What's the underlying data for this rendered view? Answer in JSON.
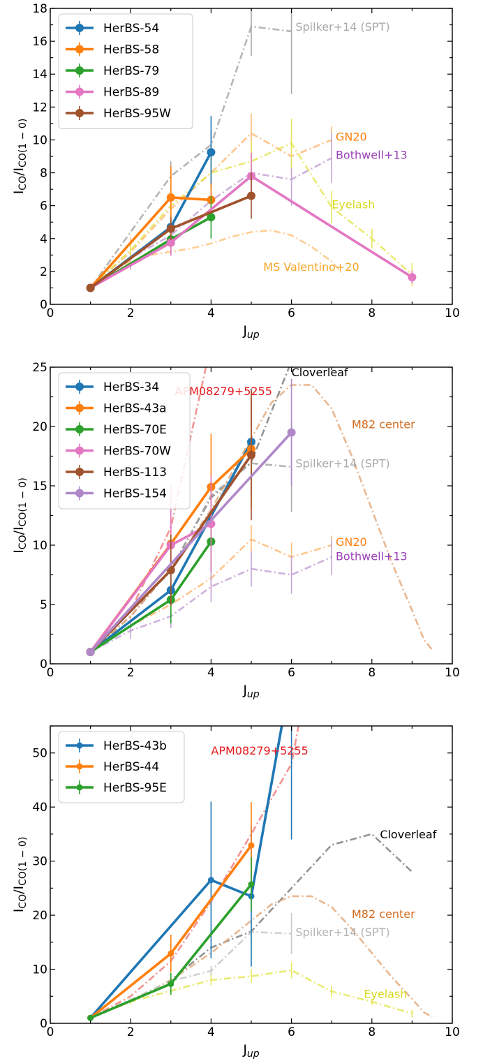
{
  "chart_data": [
    {
      "type": "line",
      "xlabel_main": "J",
      "xlabel_sub": "up",
      "ylabel_main": "I",
      "ylabel_sub": "CO",
      "ylabel_mid": "/I",
      "ylabel_sub2": "CO(1 − 0)",
      "xlim": [
        0,
        10
      ],
      "ylim": [
        0,
        18
      ],
      "xticks": [
        0,
        2,
        4,
        6,
        8,
        10
      ],
      "yticks": [
        0,
        2,
        4,
        6,
        8,
        10,
        12,
        14,
        16,
        18
      ],
      "legend_position": "top-left",
      "series": [
        {
          "name": "HerBS-54",
          "color": "#1f77b4",
          "x": [
            1,
            3,
            4
          ],
          "y": [
            1.0,
            4.7,
            9.25
          ],
          "err": [
            0,
            0.8,
            2.2
          ]
        },
        {
          "name": "HerBS-58",
          "color": "#ff7f0e",
          "x": [
            1,
            3,
            4
          ],
          "y": [
            1.0,
            6.5,
            6.35
          ],
          "err": [
            0,
            1.9,
            1.0
          ]
        },
        {
          "name": "HerBS-79",
          "color": "#2ca02c",
          "x": [
            1,
            3,
            4
          ],
          "y": [
            1.0,
            3.95,
            5.3
          ],
          "err": [
            0,
            0.8,
            1.3
          ]
        },
        {
          "name": "HerBS-89",
          "color": "#e377c2",
          "x": [
            1,
            3,
            5,
            9
          ],
          "y": [
            1.0,
            3.75,
            7.8,
            1.65
          ],
          "err": [
            0,
            0.8,
            1.4,
            0.4
          ]
        },
        {
          "name": "HerBS-95W",
          "color": "#a0522d",
          "x": [
            1,
            3,
            5
          ],
          "y": [
            1.0,
            4.6,
            6.6
          ],
          "err": [
            0,
            0.7,
            1.4
          ]
        }
      ],
      "references": [
        {
          "label": "Spilker+14 (SPT)",
          "color": "#a9a9a9",
          "x": [
            1,
            3,
            4,
            5,
            6
          ],
          "y": [
            1,
            7.8,
            9.7,
            16.9,
            16.6
          ],
          "err": [
            0,
            0.9,
            0.9,
            1.8,
            3.8
          ],
          "label_x": 6.1,
          "label_y": 16.9,
          "label_color": "#a9a9a9"
        },
        {
          "label": "GN20",
          "color": "#ffbb78",
          "x": [
            1,
            2,
            3,
            4,
            5,
            6,
            7
          ],
          "y": [
            1,
            3.2,
            5.8,
            8.0,
            10.4,
            9.0,
            10.0
          ],
          "err": [
            0,
            0.9,
            1.0,
            1.1,
            1.2,
            1.2,
            0.8
          ],
          "label_x": 7.1,
          "label_y": 10.2,
          "label_color": "#ff7f0e"
        },
        {
          "label": "Bothwell+13",
          "color": "#c5a3d6",
          "x": [
            1,
            2,
            3,
            4,
            5,
            6,
            7
          ],
          "y": [
            1,
            2.8,
            4.2,
            6.3,
            8.0,
            7.6,
            8.9
          ],
          "err": [
            0,
            0.7,
            1.0,
            1.3,
            1.5,
            1.6,
            1.5
          ],
          "label_x": 7.1,
          "label_y": 9.1,
          "label_color": "#9b3fb5"
        },
        {
          "label": "Eyelash",
          "color": "#e6e65a",
          "x": [
            1,
            2,
            3,
            4,
            5,
            6,
            7,
            8,
            9
          ],
          "y": [
            1,
            3.3,
            6.0,
            8.0,
            8.7,
            9.8,
            5.9,
            4.0,
            1.8
          ],
          "err": [
            0,
            0.5,
            0.8,
            1.0,
            1.2,
            1.5,
            1.0,
            0.6,
            0.7
          ],
          "label_x": 7.0,
          "label_y": 6.1,
          "label_color": "#d8d81e"
        },
        {
          "label": "MS Valentino+20",
          "color": "#ffc680",
          "x": [
            1,
            1.5,
            2,
            2.5,
            3,
            3.5,
            4,
            4.5,
            5,
            5.5,
            6,
            6.5,
            7,
            7.3
          ],
          "y": [
            1,
            2.0,
            2.6,
            3.0,
            3.2,
            3.4,
            3.7,
            4.1,
            4.4,
            4.5,
            4.2,
            3.5,
            2.6,
            1.8
          ],
          "err": [],
          "label_x": 5.3,
          "label_y": 2.3,
          "label_color": "#f5a623"
        }
      ]
    },
    {
      "type": "line",
      "xlabel_main": "J",
      "xlabel_sub": "up",
      "ylabel_main": "I",
      "ylabel_sub": "CO",
      "ylabel_mid": "/I",
      "ylabel_sub2": "CO(1 − 0)",
      "xlim": [
        0,
        10
      ],
      "ylim": [
        0,
        25
      ],
      "xticks": [
        0,
        2,
        4,
        6,
        8,
        10
      ],
      "yticks": [
        0,
        5,
        10,
        15,
        20,
        25
      ],
      "legend_position": "top-left",
      "series": [
        {
          "name": "HerBS-34",
          "color": "#1f77b4",
          "x": [
            1,
            3,
            5
          ],
          "y": [
            1.0,
            6.2,
            18.7
          ],
          "err": [
            0,
            1.0,
            4.5
          ]
        },
        {
          "name": "HerBS-43a",
          "color": "#ff7f0e",
          "x": [
            1,
            3,
            4,
            5
          ],
          "y": [
            1.0,
            10.1,
            14.9,
            18.1
          ],
          "err": [
            0,
            2.0,
            4.5,
            5.0
          ]
        },
        {
          "name": "HerBS-70E",
          "color": "#2ca02c",
          "x": [
            1,
            3,
            4
          ],
          "y": [
            1.0,
            5.4,
            10.3
          ],
          "err": [
            0,
            2.0,
            2.5
          ]
        },
        {
          "name": "HerBS-70W",
          "color": "#e377c2",
          "x": [
            1,
            3,
            4
          ],
          "y": [
            1.0,
            10.0,
            11.8
          ],
          "err": [
            0,
            5.0,
            4.0
          ]
        },
        {
          "name": "HerBS-113",
          "color": "#a0522d",
          "x": [
            1,
            3,
            5
          ],
          "y": [
            1.0,
            7.9,
            17.6
          ],
          "err": [
            0,
            3.0,
            5.5
          ]
        },
        {
          "name": "HerBS-154",
          "color": "#b088c8",
          "x": [
            1,
            6
          ],
          "y": [
            1.0,
            19.5
          ],
          "err": [
            0,
            4.5
          ]
        }
      ],
      "references": [
        {
          "label": "APM08279+5255",
          "color": "#f08080",
          "x": [
            1,
            2,
            3,
            4
          ],
          "y": [
            1,
            4.5,
            11.5,
            27.0
          ],
          "err": [],
          "label_x": 3.1,
          "label_y": 23.0,
          "label_color": "#e41a1c"
        },
        {
          "label": "Cloverleaf",
          "color": "#808080",
          "x": [
            1,
            2,
            3,
            4,
            5,
            6
          ],
          "y": [
            1,
            4.0,
            8.0,
            14.0,
            17.0,
            25.5
          ],
          "err": [],
          "label_x": 6.0,
          "label_y": 24.6,
          "label_color": "#000000"
        },
        {
          "label": "M82 center",
          "color": "#e4aa7e",
          "x": [
            1,
            2,
            3,
            4,
            5,
            5.5,
            6,
            6.5,
            7,
            7.5,
            8,
            8.5,
            9,
            9.3,
            9.5
          ],
          "y": [
            1,
            4.0,
            8.0,
            13.0,
            19.0,
            22.0,
            23.5,
            23.5,
            21.5,
            17.5,
            13.0,
            8.5,
            4.5,
            2.0,
            1.2
          ],
          "err": [],
          "label_x": 7.5,
          "label_y": 20.2,
          "label_color": "#d2691e"
        },
        {
          "label": "Spilker+14 (SPT)",
          "color": "#a9a9a9",
          "x": [
            1,
            3,
            4,
            5,
            6
          ],
          "y": [
            1,
            7.8,
            14.2,
            16.9,
            16.6
          ],
          "err": [
            0,
            0.9,
            0.9,
            1.8,
            3.8
          ],
          "label_x": 6.1,
          "label_y": 16.9,
          "label_color": "#a9a9a9"
        },
        {
          "label": "GN20",
          "color": "#ffbb78",
          "x": [
            1,
            2,
            3,
            4,
            5,
            6,
            7
          ],
          "y": [
            1,
            3.2,
            5.0,
            7.2,
            10.5,
            9.0,
            10.0
          ],
          "err": [
            0,
            0.9,
            1.0,
            1.1,
            1.2,
            1.2,
            0.8
          ],
          "label_x": 7.1,
          "label_y": 10.3,
          "label_color": "#ff7f0e"
        },
        {
          "label": "Bothwell+13",
          "color": "#c5a3d6",
          "x": [
            1,
            2,
            3,
            4,
            5,
            6,
            7
          ],
          "y": [
            1,
            2.8,
            4.0,
            6.5,
            8.0,
            7.5,
            9.0
          ],
          "err": [
            0,
            0.7,
            1.0,
            1.3,
            1.5,
            1.6,
            1.5
          ],
          "label_x": 7.1,
          "label_y": 9.1,
          "label_color": "#9b3fb5"
        }
      ]
    },
    {
      "type": "line",
      "xlabel_main": "J",
      "xlabel_sub": "up",
      "ylabel_main": "I",
      "ylabel_sub": "CO",
      "ylabel_mid": "/I",
      "ylabel_sub2": "CO(1 − 0)",
      "xlim": [
        0,
        10
      ],
      "ylim": [
        0,
        55
      ],
      "xticks": [
        0,
        2,
        4,
        6,
        8,
        10
      ],
      "yticks": [
        0,
        10,
        20,
        30,
        40,
        50
      ],
      "legend_position": "top-left",
      "series": [
        {
          "name": "HerBS-43b",
          "color": "#1f77b4",
          "x": [
            1,
            4,
            5,
            6
          ],
          "y": [
            1.0,
            26.5,
            23.5,
            65.0
          ],
          "err": [
            0,
            14.5,
            13.0,
            31.0
          ]
        },
        {
          "name": "HerBS-44",
          "color": "#ff7f0e",
          "x": [
            1,
            3,
            5
          ],
          "y": [
            1.0,
            12.9,
            32.9
          ],
          "err": [
            0,
            3.5,
            8.0
          ]
        },
        {
          "name": "HerBS-95E",
          "color": "#2ca02c",
          "x": [
            1,
            3,
            5
          ],
          "y": [
            1.0,
            7.3,
            25.7
          ],
          "err": [
            0,
            2.0,
            5.0
          ]
        }
      ],
      "references": [
        {
          "label": "APM08279+5255",
          "color": "#f08080",
          "x": [
            1,
            2,
            3,
            4,
            5,
            6,
            6.2
          ],
          "y": [
            1,
            5.0,
            11.5,
            22.5,
            35.0,
            48.0,
            56.0
          ],
          "err": [],
          "label_x": 4.0,
          "label_y": 50.5,
          "label_color": "#e41a1c"
        },
        {
          "label": "Cloverleaf",
          "color": "#808080",
          "x": [
            1,
            2,
            3,
            4,
            5,
            6,
            7,
            8,
            9
          ],
          "y": [
            1,
            4.0,
            8.0,
            14.0,
            17.0,
            25.0,
            33.0,
            35.0,
            28.0
          ],
          "err": [],
          "label_x": 8.2,
          "label_y": 35.0,
          "label_color": "#000000"
        },
        {
          "label": "M82 center",
          "color": "#e4aa7e",
          "x": [
            1,
            2,
            3,
            4,
            5,
            5.5,
            6,
            6.5,
            7,
            7.5,
            8,
            8.5,
            9,
            9.3,
            9.5
          ],
          "y": [
            1,
            4.0,
            8.0,
            13.0,
            19.0,
            22.0,
            23.5,
            23.5,
            21.5,
            17.5,
            13.0,
            8.5,
            4.5,
            2.0,
            1.2
          ],
          "err": [],
          "label_x": 7.5,
          "label_y": 20.3,
          "label_color": "#d2691e"
        },
        {
          "label": "Spilker+14 (SPT)",
          "color": "#c8c8c8",
          "x": [
            1,
            3,
            4,
            5,
            6
          ],
          "y": [
            1,
            7.8,
            9.7,
            16.9,
            16.6
          ],
          "err": [
            0,
            0.9,
            0.9,
            1.8,
            3.8
          ],
          "label_x": 6.1,
          "label_y": 16.9,
          "label_color": "#b4b4b4"
        },
        {
          "label": "Eyelash",
          "color": "#e6e65a",
          "x": [
            1,
            2,
            3,
            4,
            5,
            6,
            7,
            8,
            9
          ],
          "y": [
            1,
            4.0,
            6.0,
            8.0,
            8.7,
            9.8,
            5.9,
            4.0,
            1.8
          ],
          "err": [
            0,
            0.5,
            0.8,
            1.0,
            1.2,
            1.5,
            1.0,
            0.6,
            0.7
          ],
          "label_x": 7.8,
          "label_y": 5.5,
          "label_color": "#d8d81e"
        }
      ]
    }
  ]
}
